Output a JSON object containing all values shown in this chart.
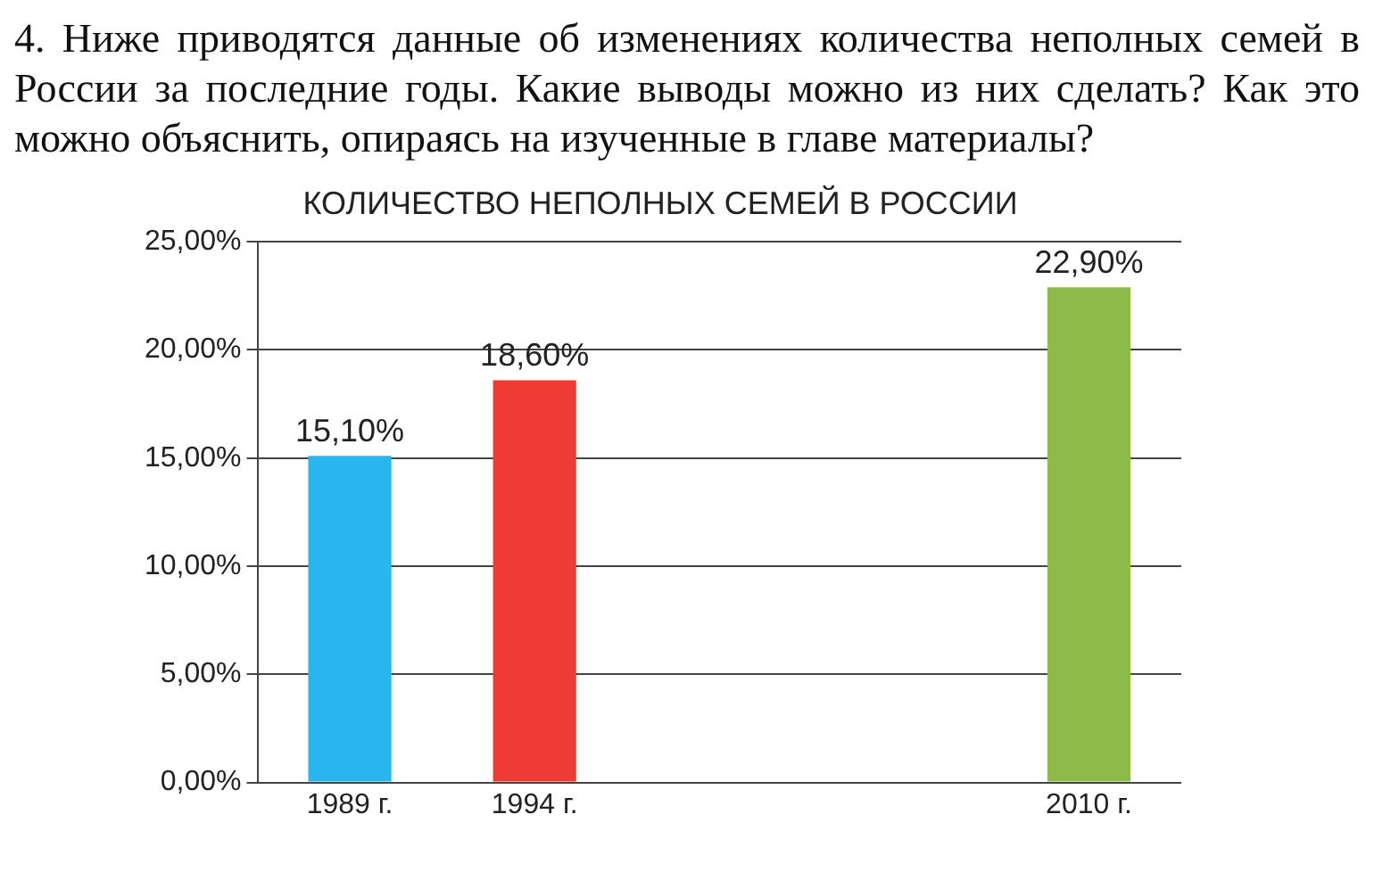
{
  "chart_data": {
    "type": "bar",
    "title": "КОЛИЧЕСТВО НЕПОЛНЫХ СЕМЕЙ В РОССИИ",
    "annotations": [
      "4. Ниже приводятся данные об изменениях количества неполных семей в России за последние годы. Какие выводы можно из них сделать? Как это можно объяснить, опираясь на изученные в главе материалы?"
    ],
    "categories": [
      "1989 г.",
      "1994 г.",
      null,
      null,
      "2010 г."
    ],
    "values": [
      15.1,
      18.6,
      null,
      null,
      22.9
    ],
    "colors": [
      "#29b6ee",
      "#ee3b33",
      "#cccccc",
      "#cccccc",
      "#8dbb4a"
    ],
    "value_labels": [
      "15,10%",
      "18,60%",
      null,
      null,
      "22,90%"
    ],
    "ylim": [
      0,
      25
    ],
    "yticks": [
      {
        "value": 0,
        "label": "0,00%"
      },
      {
        "value": 5,
        "label": "5,00%"
      },
      {
        "value": 10,
        "label": "10,00%"
      },
      {
        "value": 15,
        "label": "15,00%"
      },
      {
        "value": 20,
        "label": "20,00%"
      },
      {
        "value": 25,
        "label": "25,00%"
      }
    ],
    "grid": "y",
    "legend": false
  }
}
